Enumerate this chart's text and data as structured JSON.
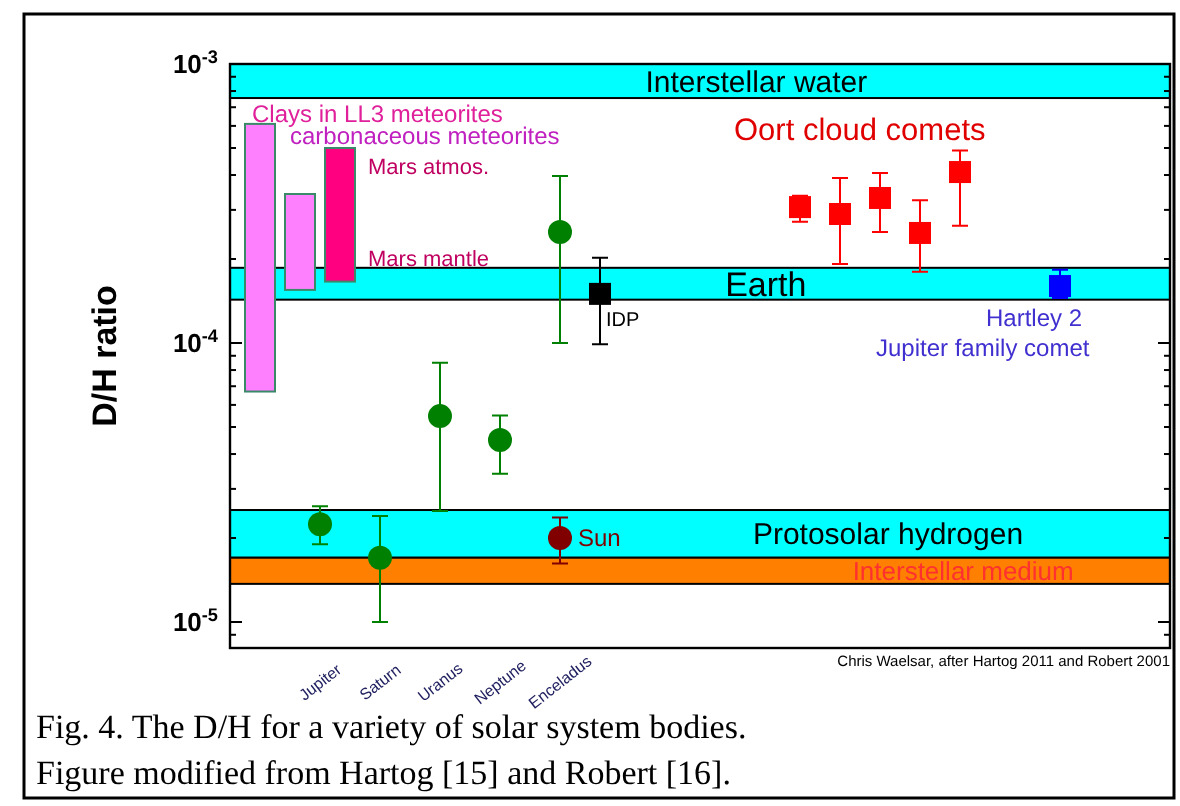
{
  "chart_data": {
    "type": "scatter",
    "ylabel": "D/H ratio",
    "log": "y",
    "categories": [
      null,
      null,
      null,
      null,
      "Jupiter",
      null,
      null,
      "Saturn",
      null,
      null,
      "Uranus",
      null,
      null,
      "Neptune",
      null,
      null,
      "Enceladus",
      null,
      null,
      null,
      null,
      null,
      null,
      null,
      null,
      null,
      null,
      null,
      null,
      null,
      null,
      null,
      null,
      null,
      null,
      null,
      null,
      null,
      null,
      null,
      null,
      null,
      null,
      null,
      null,
      null,
      null
    ],
    "ylim": [
      8.07e-06,
      0.001
    ],
    "yticks": [
      {
        "value": 9e-06,
        "label": null
      },
      {
        "value": 1e-05,
        "label": "10$^{-5}$"
      },
      {
        "value": 2e-05,
        "label": null
      },
      {
        "value": 3e-05,
        "label": null
      },
      {
        "value": 4e-05,
        "label": null
      },
      {
        "value": 5e-05,
        "label": null
      },
      {
        "value": 6e-05,
        "label": null
      },
      {
        "value": 7e-05,
        "label": null
      },
      {
        "value": 8e-05,
        "label": null
      },
      {
        "value": 9e-05,
        "label": null
      },
      {
        "value": 0.0001,
        "label": "10$^{-4}$"
      },
      {
        "value": 0.0002,
        "label": null
      },
      {
        "value": 0.0003,
        "label": null
      },
      {
        "value": 0.0004,
        "label": null
      },
      {
        "value": 0.0005,
        "label": null
      },
      {
        "value": 0.0006,
        "label": null
      },
      {
        "value": 0.0007,
        "label": null
      },
      {
        "value": 0.0008,
        "label": null
      },
      {
        "value": 0.0009,
        "label": null
      },
      {
        "value": 0.001,
        "label": "10$^{-3}$"
      }
    ],
    "bands": [
      {
        "axis": "y",
        "from": 0.000755,
        "to": 0.001,
        "label": "Interstellar water",
        "color": "#00ffff"
      },
      {
        "axis": "y",
        "from": 0.000143,
        "to": 0.000186,
        "label": "Earth",
        "color": "#00ffff"
      },
      {
        "axis": "y",
        "from": 1.7e-05,
        "to": 2.52e-05,
        "label": "Protosolar hydrogen",
        "color": "#00ffff"
      },
      {
        "axis": "y",
        "from": 1.37e-05,
        "to": 1.7e-05,
        "label": "Interstellar medium",
        "color": "#ff8000"
      }
    ],
    "series": [
      {
        "type": "bar",
        "color": "#ff80ff",
        "base": [
          null,
          6.7e-05,
          null,
          null,
          null,
          null,
          null,
          null,
          null,
          null,
          null,
          null,
          null,
          null,
          null,
          null,
          null,
          null,
          null,
          null,
          null,
          null,
          null,
          null,
          null,
          null,
          null,
          null,
          null,
          null,
          null,
          null,
          null,
          null,
          null,
          null,
          null,
          null,
          null,
          null,
          null,
          null,
          null,
          null,
          null,
          null,
          null
        ],
        "values": [
          null,
          0.000543,
          null,
          null,
          null,
          null,
          null,
          null,
          null,
          null,
          null,
          null,
          null,
          null,
          null,
          null,
          null,
          null,
          null,
          null,
          null,
          null,
          null,
          null,
          null,
          null,
          null,
          null,
          null,
          null,
          null,
          null,
          null,
          null,
          null,
          null,
          null,
          null,
          null,
          null,
          null,
          null,
          null,
          null,
          null,
          null,
          null
        ]
      },
      {
        "type": "bar",
        "color": "#ff80ff",
        "base": [
          null,
          null,
          null,
          0.000155,
          null,
          null,
          null,
          null,
          null,
          null,
          null,
          null,
          null,
          null,
          null,
          null,
          null,
          null,
          null,
          null,
          null,
          null,
          null,
          null,
          null,
          null,
          null,
          null,
          null,
          null,
          null,
          null,
          null,
          null,
          null,
          null,
          null,
          null,
          null,
          null,
          null,
          null,
          null,
          null,
          null,
          null,
          null
        ],
        "values": [
          null,
          null,
          null,
          0.000187,
          null,
          null,
          null,
          null,
          null,
          null,
          null,
          null,
          null,
          null,
          null,
          null,
          null,
          null,
          null,
          null,
          null,
          null,
          null,
          null,
          null,
          null,
          null,
          null,
          null,
          null,
          null,
          null,
          null,
          null,
          null,
          null,
          null,
          null,
          null,
          null,
          null,
          null,
          null,
          null,
          null,
          null,
          null
        ]
      },
      {
        "type": "bar",
        "color": "#ff0080",
        "base": [
          null,
          null,
          null,
          null,
          null,
          0.000166,
          null,
          null,
          null,
          null,
          null,
          null,
          null,
          null,
          null,
          null,
          null,
          null,
          null,
          null,
          null,
          null,
          null,
          null,
          null,
          null,
          null,
          null,
          null,
          null,
          null,
          null,
          null,
          null,
          null,
          null,
          null,
          null,
          null,
          null,
          null,
          null,
          null,
          null,
          null,
          null,
          null
        ],
        "values": [
          null,
          null,
          null,
          null,
          null,
          0.000334,
          null,
          null,
          null,
          null,
          null,
          null,
          null,
          null,
          null,
          null,
          null,
          null,
          null,
          null,
          null,
          null,
          null,
          null,
          null,
          null,
          null,
          null,
          null,
          null,
          null,
          null,
          null,
          null,
          null,
          null,
          null,
          null,
          null,
          null,
          null,
          null,
          null,
          null,
          null,
          null,
          null
        ]
      },
      {
        "marker": "circle",
        "color": "#008000",
        "values": [
          null,
          null,
          null,
          null,
          2.24e-05,
          null,
          null,
          1.7e-05,
          null,
          null,
          5.47e-05,
          null,
          null,
          4.49e-05,
          null,
          null,
          0.00025,
          null,
          null,
          null,
          null,
          null,
          null,
          null,
          null,
          null,
          null,
          null,
          null,
          null,
          null,
          null,
          null,
          null,
          null,
          null,
          null,
          null,
          null,
          null,
          null,
          null,
          null,
          null,
          null,
          null,
          null
        ],
        "errors": [
          null,
          null,
          null,
          null,
          [
            1.9e-05,
            2.6e-05
          ],
          null,
          null,
          [
            1e-05,
            2.4e-05
          ],
          null,
          null,
          [
            2.5e-05,
            8.5e-05
          ],
          null,
          null,
          [
            3.4e-05,
            5.5e-05
          ],
          null,
          null,
          [
            0.0001,
            0.000397
          ],
          null,
          null,
          null,
          null,
          null,
          null,
          null,
          null,
          null,
          null,
          null,
          null,
          null,
          null,
          null,
          null,
          null,
          null,
          null,
          null,
          null,
          null,
          null,
          null,
          null,
          null,
          null,
          null,
          null,
          null
        ]
      },
      {
        "marker": "circle",
        "color": "#800000",
        "values": [
          null,
          null,
          null,
          null,
          null,
          null,
          null,
          null,
          null,
          null,
          null,
          null,
          null,
          null,
          null,
          null,
          2e-05,
          null,
          null,
          null,
          null,
          null,
          null,
          null,
          null,
          null,
          null,
          null,
          null,
          null,
          null,
          null,
          null,
          null,
          null,
          null,
          null,
          null,
          null,
          null,
          null,
          null,
          null,
          null,
          null,
          null,
          null
        ],
        "errors": [
          null,
          null,
          null,
          null,
          null,
          null,
          null,
          null,
          null,
          null,
          null,
          null,
          null,
          null,
          null,
          null,
          [
            1.62e-05,
            2.37e-05
          ],
          null,
          null,
          null,
          null,
          null,
          null,
          null,
          null,
          null,
          null,
          null,
          null,
          null,
          null,
          null,
          null,
          null,
          null,
          null,
          null,
          null,
          null,
          null,
          null,
          null,
          null,
          null,
          null,
          null,
          null
        ]
      },
      {
        "marker": "square",
        "color": "#000000",
        "values": [
          null,
          null,
          null,
          null,
          null,
          null,
          null,
          null,
          null,
          null,
          null,
          null,
          null,
          null,
          null,
          null,
          null,
          null,
          0.00015,
          null,
          null,
          null,
          null,
          null,
          null,
          null,
          null,
          null,
          null,
          null,
          null,
          null,
          null,
          null,
          null,
          null,
          null,
          null,
          null,
          null,
          null,
          null,
          null,
          null,
          null,
          null,
          null
        ],
        "errors": [
          null,
          null,
          null,
          null,
          null,
          null,
          null,
          null,
          null,
          null,
          null,
          null,
          null,
          null,
          null,
          null,
          null,
          null,
          [
            9.9e-05,
            0.000202
          ],
          null,
          null,
          null,
          null,
          null,
          null,
          null,
          null,
          null,
          null,
          null,
          null,
          null,
          null,
          null,
          null,
          null,
          null,
          null,
          null,
          null,
          null,
          null,
          null,
          null,
          null,
          null,
          null
        ]
      },
      {
        "marker": "square",
        "color": "#ff0000",
        "values": [
          null,
          null,
          null,
          null,
          null,
          null,
          null,
          null,
          null,
          null,
          null,
          null,
          null,
          null,
          null,
          null,
          null,
          null,
          null,
          null,
          null,
          null,
          null,
          null,
          null,
          null,
          null,
          null,
          0.000307,
          null,
          0.00029,
          null,
          0.000331,
          null,
          0.000248,
          null,
          0.00041,
          null,
          null,
          null,
          null,
          null,
          null,
          null,
          null,
          null,
          null
        ],
        "errors": [
          null,
          null,
          null,
          null,
          null,
          null,
          null,
          null,
          null,
          null,
          null,
          null,
          null,
          null,
          null,
          null,
          null,
          null,
          null,
          null,
          null,
          null,
          null,
          null,
          null,
          null,
          null,
          null,
          [
            0.000272,
            0.000337
          ],
          null,
          [
            0.000192,
            0.00039
          ],
          null,
          [
            0.00025,
            0.000407
          ],
          null,
          [
            0.00018,
            0.000325
          ],
          null,
          [
            0.000263,
            0.00049
          ],
          null,
          null,
          null,
          null,
          null,
          null,
          null,
          null,
          null,
          null
        ]
      },
      {
        "marker": "square",
        "color": "#0000ff",
        "values": [
          null,
          null,
          null,
          null,
          null,
          null,
          null,
          null,
          null,
          null,
          null,
          null,
          null,
          null,
          null,
          null,
          null,
          null,
          null,
          null,
          null,
          null,
          null,
          null,
          null,
          null,
          null,
          null,
          null,
          null,
          null,
          null,
          null,
          null,
          null,
          null,
          null,
          null,
          null,
          null,
          null,
          0.00016,
          null,
          null,
          null,
          null,
          null
        ],
        "errors": [
          null,
          null,
          null,
          null,
          null,
          null,
          null,
          null,
          null,
          null,
          null,
          null,
          null,
          null,
          null,
          null,
          null,
          null,
          null,
          null,
          null,
          null,
          null,
          null,
          null,
          null,
          null,
          null,
          null,
          null,
          null,
          null,
          null,
          null,
          null,
          null,
          null,
          null,
          null,
          null,
          null,
          [
            0.000145,
            0.000183
          ],
          null,
          null,
          null,
          null,
          null
        ]
      }
    ],
    "annotations": [
      "Clays in LL3 meteorites",
      "carbonaceous meteorites",
      "Mars atmos.",
      "Mars mantle",
      "Oort cloud comets",
      "Sun",
      "IDP",
      "Hartley 2",
      "Jupiter family comet",
      "Chris Waelsar, after Hartog 2011 and Robert 2001",
      "Fig. 4. The D/H for a variety of solar system bodies.",
      "Figure modified from Hartog [15] and Robert [16]."
    ]
  }
}
